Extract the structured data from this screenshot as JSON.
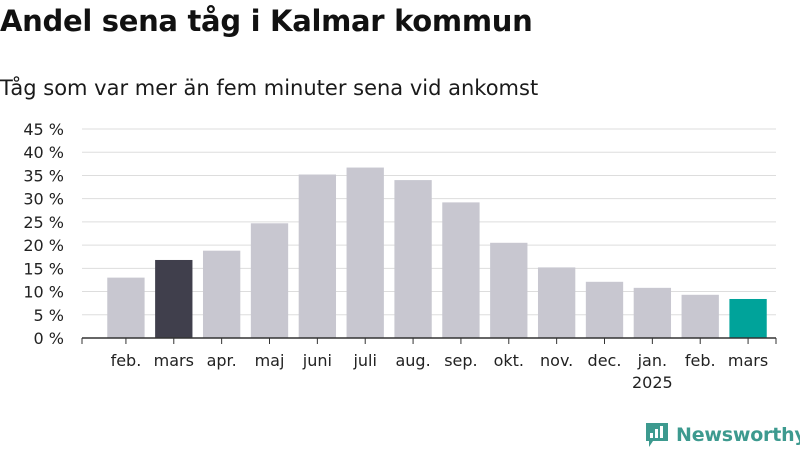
{
  "title": "Andel sena tåg i Kalmar kommun",
  "subtitle": "Tåg som var mer än fem minuter sena vid ankomst",
  "brand": "Newsworthy",
  "colors": {
    "bar_default": "#c8c7d0",
    "bar_first_highlight": "#403f4c",
    "bar_last_highlight": "#00a39a",
    "gridline": "#dddddd",
    "axis": "#333333",
    "brand": "#3d9a8f"
  },
  "chart_data": {
    "type": "bar",
    "categories": [
      "feb.",
      "mars",
      "apr.",
      "maj",
      "juni",
      "juli",
      "aug.",
      "sep.",
      "okt.",
      "nov.",
      "dec.",
      "jan.",
      "feb.",
      "mars"
    ],
    "category_sublabels": [
      "",
      "",
      "",
      "",
      "",
      "",
      "",
      "",
      "",
      "",
      "",
      "2025",
      "",
      ""
    ],
    "values": [
      13,
      16.8,
      18.8,
      24.7,
      35.2,
      36.7,
      34,
      29.2,
      20.5,
      15.2,
      12.1,
      10.8,
      9.3,
      8.4
    ],
    "highlight": {
      "1": "dark",
      "13": "teal"
    },
    "ylim": [
      0,
      45
    ],
    "yticks": [
      0,
      5,
      10,
      15,
      20,
      25,
      30,
      35,
      40,
      45
    ],
    "ytick_labels": [
      "0 %",
      "5 %",
      "10 %",
      "15 %",
      "20 %",
      "25 %",
      "30 %",
      "35 %",
      "40 %",
      "45 %"
    ],
    "grid": true
  }
}
